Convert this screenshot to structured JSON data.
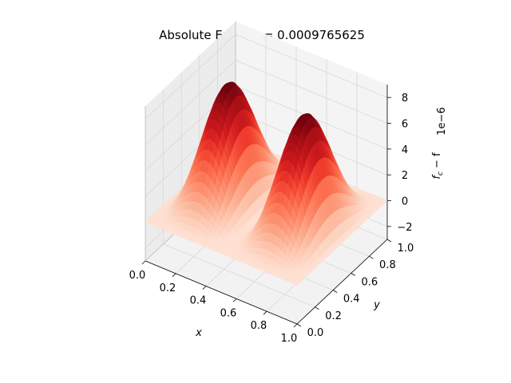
{
  "chart_data": {
    "type": "surface",
    "title": "Absolute Error, h = 0.0009765625",
    "title_parts": {
      "prefix": "Absolute Error, ",
      "var": "h",
      "eq": " = ",
      "value": "0.0009765625"
    },
    "xlabel": "x",
    "ylabel": "y",
    "zlabel": "f_c − f",
    "zlabel_parts": {
      "f": "f",
      "sub": "c",
      "rest": " − f"
    },
    "z_offset_text": "1e−6",
    "xlim": [
      0,
      1
    ],
    "ylim": [
      0,
      1
    ],
    "zlim": [
      -3,
      9
    ],
    "x_ticks": [
      "0.0",
      "0.2",
      "0.4",
      "0.6",
      "0.8",
      "1.0"
    ],
    "y_ticks": [
      "0.0",
      "0.2",
      "0.4",
      "0.6",
      "0.8",
      "1.0"
    ],
    "z_ticks": [
      "−2",
      "0",
      "2",
      "4",
      "6",
      "8"
    ],
    "z_tick_values": [
      -2,
      0,
      2,
      4,
      6,
      8
    ],
    "colormap": "Reds",
    "colormap_stops": [
      "#fff5f0",
      "#fee0d2",
      "#fcbba1",
      "#fc9272",
      "#fb6a4a",
      "#ef3b2c",
      "#cb181d",
      "#a50f15",
      "#67000d"
    ],
    "surface": {
      "form": "A * sin(2*pi*x)^2 * sin(pi*y)^2",
      "amplitude_e6": 8.7,
      "peaks": [
        {
          "x": 0.25,
          "y": 0.5,
          "z_e6": 8.7
        },
        {
          "x": 0.75,
          "y": 0.5,
          "z_e6": 8.7
        }
      ]
    },
    "grid": true,
    "legend": "none"
  }
}
